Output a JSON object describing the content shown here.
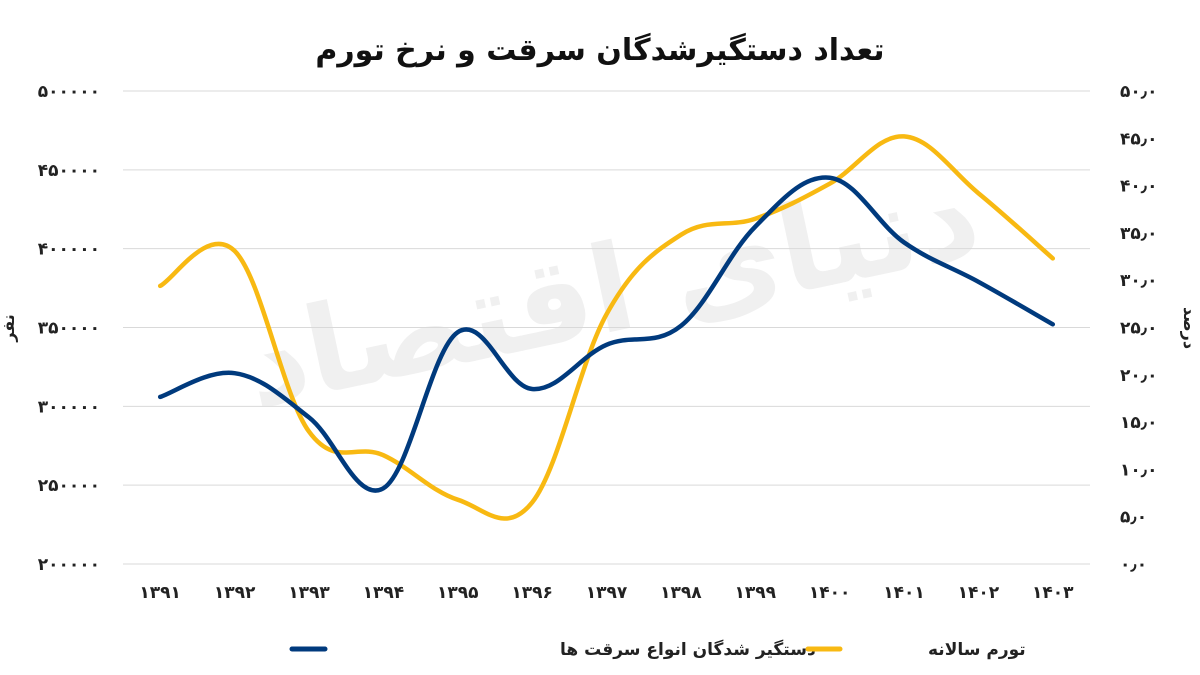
{
  "chart_data": {
    "type": "line",
    "title": "تعداد دستگیرشدگان سرقت و نرخ تورم",
    "watermark": "دنیای اقتصاد",
    "categories": [
      "۱۳۹۱",
      "۱۳۹۲",
      "۱۳۹۳",
      "۱۳۹۴",
      "۱۳۹۵",
      "۱۳۹۶",
      "۱۳۹۷",
      "۱۳۹۸",
      "۱۳۹۹",
      "۱۴۰۰",
      "۱۴۰۱",
      "۱۴۰۲",
      "۱۴۰۳"
    ],
    "left_axis": {
      "label": "نفر",
      "range": [
        200000,
        500000
      ],
      "ticks": [
        {
          "value": 200000,
          "label": "۲۰۰۰۰۰"
        },
        {
          "value": 250000,
          "label": "۲۵۰۰۰۰"
        },
        {
          "value": 300000,
          "label": "۳۰۰۰۰۰"
        },
        {
          "value": 350000,
          "label": "۳۵۰۰۰۰"
        },
        {
          "value": 400000,
          "label": "۴۰۰۰۰۰"
        },
        {
          "value": 450000,
          "label": "۴۵۰۰۰۰"
        },
        {
          "value": 500000,
          "label": "۵۰۰۰۰۰"
        }
      ]
    },
    "right_axis": {
      "label": "درصد",
      "range": [
        0,
        50
      ],
      "ticks": [
        {
          "value": 0,
          "label": "۰٫۰"
        },
        {
          "value": 5,
          "label": "۵٫۰"
        },
        {
          "value": 10,
          "label": "۱۰٫۰"
        },
        {
          "value": 15,
          "label": "۱۵٫۰"
        },
        {
          "value": 20,
          "label": "۲۰٫۰"
        },
        {
          "value": 25,
          "label": "۲۵٫۰"
        },
        {
          "value": 30,
          "label": "۳۰٫۰"
        },
        {
          "value": 35,
          "label": "۳۵٫۰"
        },
        {
          "value": 40,
          "label": "۴۰٫۰"
        },
        {
          "value": 45,
          "label": "۴۵٫۰"
        },
        {
          "value": 50,
          "label": "۵۰٫۰"
        }
      ]
    },
    "grid": true,
    "legend_position": "bottom",
    "series": [
      {
        "name": "دستگیر شدگان انواع سرقت ها",
        "axis": "left",
        "color": "#003a7d",
        "values": [
          306000,
          321000,
          293000,
          248000,
          347000,
          311000,
          339000,
          351000,
          414000,
          445000,
          404000,
          379000,
          352000
        ]
      },
      {
        "name": "تورم سالانه",
        "axis": "right",
        "color": "#f8b912",
        "values": [
          29.4,
          33.1,
          14.0,
          11.5,
          6.8,
          6.5,
          26.4,
          34.8,
          36.5,
          40.2,
          45.2,
          39.2,
          32.3
        ]
      }
    ]
  }
}
